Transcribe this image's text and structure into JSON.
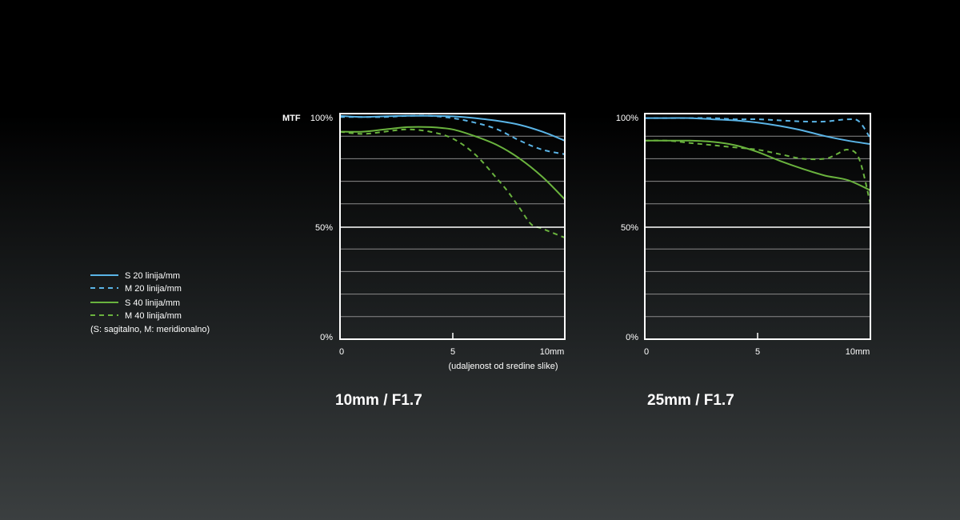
{
  "legend": {
    "items": [
      {
        "label": "S 20 linija/mm",
        "color": "#5ab4e6",
        "dash": false
      },
      {
        "label": "M 20 linija/mm",
        "color": "#5ab4e6",
        "dash": true
      },
      {
        "label": "S 40 linija/mm",
        "color": "#6ab33e",
        "dash": false
      },
      {
        "label": "M 40 linija/mm",
        "color": "#6ab33e",
        "dash": true
      }
    ],
    "note": "(S: sagitalno, M: meridionalno)"
  },
  "chart_data": [
    {
      "type": "line",
      "title": "10mm / F1.7",
      "ylabel": "MTF",
      "xlabel": "(udaljenost od sredine slike)",
      "xlim": [
        0,
        10
      ],
      "ylim": [
        0,
        100
      ],
      "x_ticks": [
        {
          "value": 0,
          "label": "0"
        },
        {
          "value": 5,
          "label": "5"
        },
        {
          "value": 10,
          "label": "10mm"
        }
      ],
      "y_ticks": [
        {
          "value": 100,
          "label": "100%"
        },
        {
          "value": 50,
          "label": "50%"
        },
        {
          "value": 0,
          "label": "0%"
        }
      ],
      "grid_step": 10,
      "series": [
        {
          "name": "S 20 linija/mm",
          "color": "#5ab4e6",
          "dash": false,
          "x": [
            0,
            1,
            2,
            3,
            4,
            5,
            6,
            7,
            8,
            9,
            10
          ],
          "y": [
            99,
            98.5,
            98.8,
            99,
            99,
            98.8,
            98,
            96.8,
            95,
            92,
            88
          ]
        },
        {
          "name": "M 20 linija/mm",
          "color": "#5ab4e6",
          "dash": true,
          "x": [
            0,
            1,
            2,
            3,
            4,
            5,
            6,
            7,
            8,
            9,
            10
          ],
          "y": [
            98.5,
            98.5,
            98.5,
            99,
            99,
            98,
            96,
            93,
            88,
            84,
            82
          ]
        },
        {
          "name": "S 40 linija/mm",
          "color": "#6ab33e",
          "dash": false,
          "x": [
            0,
            1,
            2,
            3,
            4,
            5,
            6,
            7,
            8,
            9,
            10
          ],
          "y": [
            92,
            92,
            93,
            94,
            94,
            93,
            90,
            86,
            80,
            72,
            62
          ]
        },
        {
          "name": "M 40 linija/mm",
          "color": "#6ab33e",
          "dash": true,
          "x": [
            0,
            1,
            2,
            3,
            4,
            5,
            6,
            7,
            7.5,
            8,
            8.5,
            9,
            10
          ],
          "y": [
            92,
            91,
            92,
            93,
            92,
            89,
            82,
            71,
            65,
            58,
            51,
            49,
            45
          ]
        }
      ]
    },
    {
      "type": "line",
      "title": "25mm / F1.7",
      "ylabel": "",
      "xlabel": "",
      "xlim": [
        0,
        10
      ],
      "ylim": [
        0,
        100
      ],
      "x_ticks": [
        {
          "value": 0,
          "label": "0"
        },
        {
          "value": 5,
          "label": "5"
        },
        {
          "value": 10,
          "label": "10mm"
        }
      ],
      "y_ticks": [
        {
          "value": 100,
          "label": "100%"
        },
        {
          "value": 50,
          "label": "50%"
        },
        {
          "value": 0,
          "label": "0%"
        }
      ],
      "grid_step": 10,
      "series": [
        {
          "name": "S 20 linija/mm",
          "color": "#5ab4e6",
          "dash": false,
          "x": [
            0,
            1,
            2,
            3,
            4,
            5,
            6,
            7,
            8,
            9,
            10
          ],
          "y": [
            98,
            98,
            98,
            97.5,
            97,
            96,
            94.5,
            92.5,
            90,
            88,
            86.5
          ]
        },
        {
          "name": "M 20 linija/mm",
          "color": "#5ab4e6",
          "dash": true,
          "x": [
            0,
            1,
            2,
            3,
            4,
            5,
            6,
            7,
            8,
            9,
            9.5,
            10
          ],
          "y": [
            98,
            98,
            98,
            98,
            97.5,
            97.5,
            97,
            96.5,
            96.5,
            97.5,
            96.5,
            89
          ]
        },
        {
          "name": "S 40 linija/mm",
          "color": "#6ab33e",
          "dash": false,
          "x": [
            0,
            1,
            2,
            3,
            4,
            5,
            6,
            7,
            8,
            9,
            10
          ],
          "y": [
            88,
            88,
            88,
            87.5,
            86,
            83,
            79,
            75.5,
            72.5,
            70.5,
            66
          ]
        },
        {
          "name": "M 40 linija/mm",
          "color": "#6ab33e",
          "dash": true,
          "x": [
            0,
            1,
            2,
            3,
            4,
            5,
            6,
            7,
            8,
            8.5,
            9,
            9.5,
            10
          ],
          "y": [
            88,
            88,
            87,
            86,
            85,
            84,
            82,
            80,
            80,
            82,
            84,
            80,
            60
          ]
        }
      ]
    }
  ]
}
